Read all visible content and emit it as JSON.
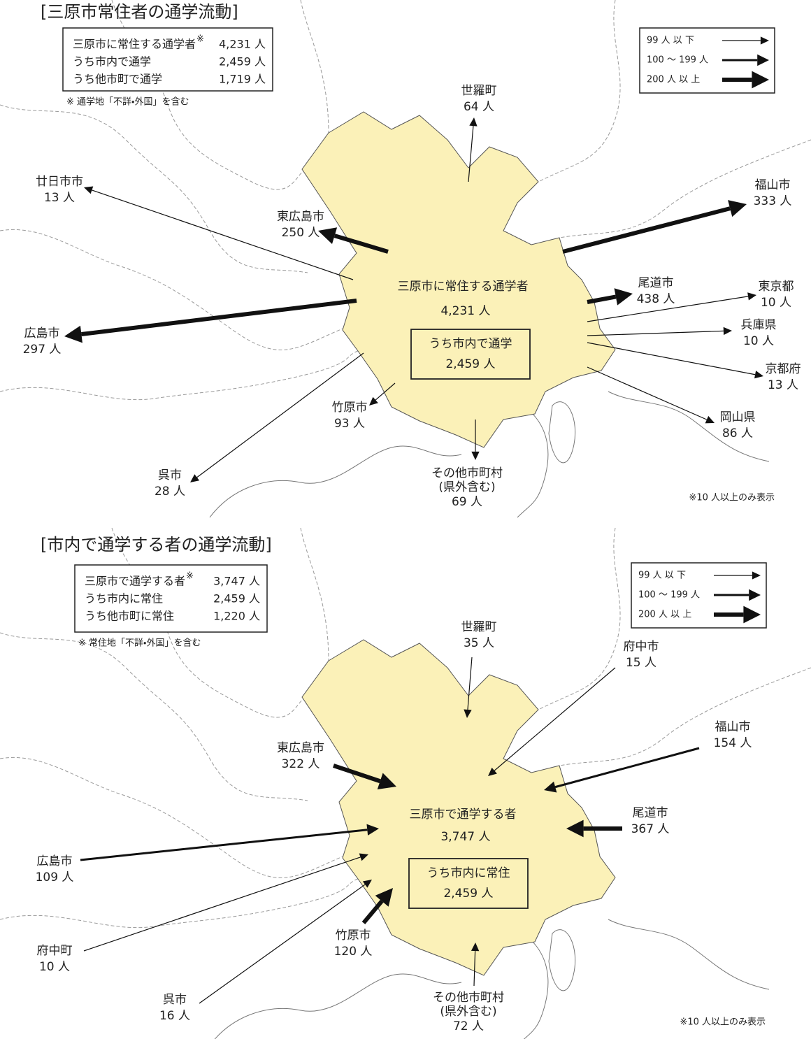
{
  "maps": [
    {
      "title": "[三原市常住者の通学流動]",
      "summary": {
        "rows": [
          {
            "label": "三原市に常住する通学者",
            "mark": "※",
            "value": "4,231 人"
          },
          {
            "label": "うち市内で通学",
            "value": "2,459 人"
          },
          {
            "label": "うち他市町で通学",
            "value": "1,719 人"
          }
        ],
        "note": "※ 通学地「不詳・外国」を含む"
      },
      "legend": [
        "99 人 以 下",
        "100 〜 199 人",
        "200 人 以 上"
      ],
      "center": {
        "label": "三原市に常住する通学者",
        "value": "4,231 人",
        "inner_label": "うち市内で通学",
        "inner_value": "2,459 人"
      },
      "flows": [
        {
          "name": "世羅町",
          "value": "64 人"
        },
        {
          "name": "廿日市市",
          "value": "13 人"
        },
        {
          "name": "東広島市",
          "value": "250 人"
        },
        {
          "name": "福山市",
          "value": "333 人"
        },
        {
          "name": "尾道市",
          "value": "438 人"
        },
        {
          "name": "東京都",
          "value": "10 人"
        },
        {
          "name": "兵庫県",
          "value": "10 人"
        },
        {
          "name": "京都府",
          "value": "13 人"
        },
        {
          "name": "岡山県",
          "value": "86 人"
        },
        {
          "name": "その他市町村",
          "sub": "(県外含む)",
          "value": "69 人"
        },
        {
          "name": "竹原市",
          "value": "93 人"
        },
        {
          "name": "呉市",
          "value": "28 人"
        },
        {
          "name": "広島市",
          "value": "297 人"
        }
      ],
      "footnote": "※10 人以上のみ表示"
    },
    {
      "title": "[市内で通学する者の通学流動]",
      "summary": {
        "rows": [
          {
            "label": "三原市で通学する者",
            "mark": "※",
            "value": "3,747 人"
          },
          {
            "label": "うち市内に常住",
            "value": "2,459 人"
          },
          {
            "label": "うち他市町に常住",
            "value": "1,220 人"
          }
        ],
        "note": "※ 常住地「不詳・外国」を含む"
      },
      "legend": [
        "99 人 以 下",
        "100 〜 199 人",
        "200 人 以 上"
      ],
      "center": {
        "label": "三原市で通学する者",
        "value": "3,747 人",
        "inner_label": "うち市内に常住",
        "inner_value": "2,459 人"
      },
      "flows": [
        {
          "name": "世羅町",
          "value": "35 人"
        },
        {
          "name": "府中市",
          "value": "15 人"
        },
        {
          "name": "福山市",
          "value": "154 人"
        },
        {
          "name": "東広島市",
          "value": "322 人"
        },
        {
          "name": "尾道市",
          "value": "367 人"
        },
        {
          "name": "広島市",
          "value": "109 人"
        },
        {
          "name": "府中町",
          "value": "10 人"
        },
        {
          "name": "竹原市",
          "value": "120 人"
        },
        {
          "name": "呉市",
          "value": "16 人"
        },
        {
          "name": "その他市町村",
          "sub": "(県外含む)",
          "value": "72 人"
        }
      ],
      "footnote": "※10 人以上のみ表示"
    }
  ]
}
